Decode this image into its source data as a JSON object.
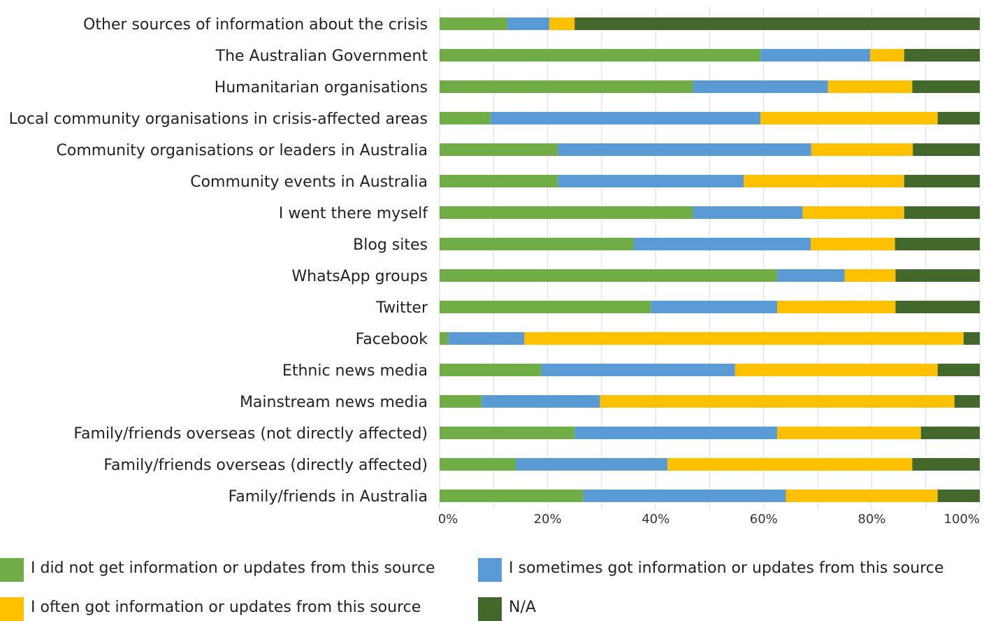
{
  "chart_data": {
    "type": "bar",
    "orientation": "horizontal",
    "stacked": true,
    "categories": [
      "Other sources of information about the crisis",
      "The Australian Government",
      "Humanitarian organisations",
      "Local community organisations in crisis-affected areas",
      "Community organisations or leaders in Australia",
      "Community events in Australia",
      "I went there myself",
      "Blog sites",
      "WhatsApp groups",
      "Twitter",
      "Facebook",
      "Ethnic news media",
      "Mainstream news media",
      "Family/friends overseas (not directly affected)",
      "Family/friends overseas (directly affected)",
      "Family/friends in Australia"
    ],
    "series": [
      {
        "name": "I did not get information or updates from this source",
        "color": "#70ad47",
        "values": [
          12.5,
          59.4,
          46.9,
          9.4,
          21.9,
          21.9,
          46.9,
          35.9,
          62.5,
          39.1,
          1.6,
          18.8,
          7.8,
          25.0,
          14.1,
          26.6
        ]
      },
      {
        "name": "I sometimes got information or updates from this source",
        "color": "#5b9bd5",
        "values": [
          7.8,
          20.3,
          25.0,
          50.0,
          46.9,
          34.4,
          20.3,
          32.8,
          12.5,
          23.4,
          14.1,
          35.9,
          21.9,
          37.5,
          28.1,
          37.5
        ]
      },
      {
        "name": "I often got information or updates from this source",
        "color": "#ffc000",
        "values": [
          4.7,
          6.3,
          15.6,
          32.8,
          18.8,
          29.7,
          18.8,
          15.6,
          9.4,
          21.9,
          81.3,
          37.5,
          65.6,
          26.6,
          45.3,
          28.1
        ]
      },
      {
        "name": "N/A",
        "color": "#43682b",
        "values": [
          75.0,
          14.0,
          12.5,
          7.8,
          12.4,
          14.0,
          14.0,
          15.7,
          15.6,
          15.6,
          3.0,
          7.8,
          4.7,
          10.9,
          12.5,
          7.8
        ]
      }
    ],
    "xlim": [
      0,
      100
    ],
    "x_ticks": [
      "0%",
      "20%",
      "40%",
      "60%",
      "80%",
      "100%"
    ],
    "x_tick_values": [
      0,
      20,
      40,
      60,
      80,
      100
    ],
    "x_minor_gridlines_every": 10,
    "grid": true,
    "legend_position": "bottom",
    "title": "",
    "xlabel": "",
    "ylabel": ""
  }
}
